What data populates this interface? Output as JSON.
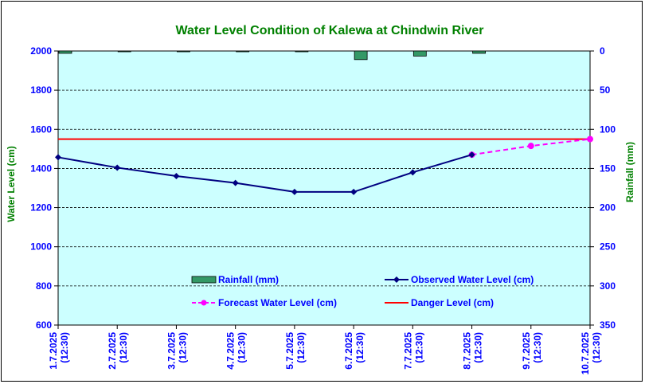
{
  "chart_data": {
    "type": "line",
    "title": "Water Level Condition of Kalewa at Chindwin River",
    "ylabel": "Water Level (cm)",
    "y2label": "Rainfall (mm)",
    "ylim": [
      600,
      2000
    ],
    "y2lim": [
      0,
      350
    ],
    "y2_inverted": true,
    "grid": true,
    "categories": [
      [
        "1.7.2025",
        "(12:30)"
      ],
      [
        "2.7.2025",
        "(12:30)"
      ],
      [
        "3.7.2025",
        "(12:30)"
      ],
      [
        "4.7.2025",
        "(12:30)"
      ],
      [
        "5.7.2025",
        "(12:30)"
      ],
      [
        "6.7.2025",
        "(12:30)"
      ],
      [
        "7.7.2025",
        "(12:30)"
      ],
      [
        "8.7.2025",
        "(12:30)"
      ],
      [
        "9.7.2025",
        "(12:30)"
      ],
      [
        "10.7.2025",
        "(12:30)"
      ]
    ],
    "left_ticks": [
      600,
      800,
      1000,
      1200,
      1400,
      1600,
      1800,
      2000
    ],
    "right_ticks": [
      0,
      50,
      100,
      150,
      200,
      250,
      300,
      350
    ],
    "rainfall": {
      "name": "Rainfall (mm)",
      "color": "#339966",
      "values": [
        3,
        1,
        0.5,
        1,
        1,
        11,
        6.5,
        3
      ]
    },
    "observed": {
      "name": "Observed Water Level (cm)",
      "color": "#000080",
      "values": [
        1457,
        1404,
        1361,
        1326,
        1280,
        1280,
        1380,
        1470
      ]
    },
    "forecast": {
      "name": "Forecast Water Level (cm)",
      "color": "#ff00ff",
      "indices": [
        7,
        8,
        9
      ],
      "values": [
        1470,
        1515,
        1550
      ]
    },
    "danger": {
      "name": "Danger Level (cm)",
      "color": "#ff0000",
      "value": 1550
    },
    "colors": {
      "plot_bg": "#ccffff",
      "title": "#008000",
      "axis_labels": "#0000ff",
      "axis_titles": "#008000"
    }
  }
}
